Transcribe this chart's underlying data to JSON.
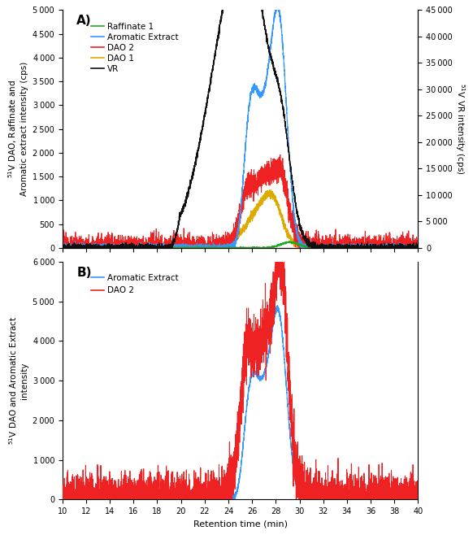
{
  "xlim": [
    10,
    40
  ],
  "xticks": [
    10,
    12,
    14,
    16,
    18,
    20,
    22,
    24,
    26,
    28,
    30,
    32,
    34,
    36,
    38,
    40
  ],
  "panel_A": {
    "ylim_left": [
      0,
      5000
    ],
    "ylim_right": [
      0,
      45000
    ],
    "yticks_left": [
      0,
      500,
      1000,
      1500,
      2000,
      2500,
      3000,
      3500,
      4000,
      4500,
      5000
    ],
    "yticks_right": [
      0,
      5000,
      10000,
      15000,
      20000,
      25000,
      30000,
      35000,
      40000,
      45000
    ],
    "ylabel_left": "$^{51}$V DAO, Raffinate and\nAromatic extract intensity (cps)",
    "ylabel_right": "$^{51}$V VR intensity (cps)",
    "label_A": "A)",
    "legend_colors": [
      "#22aa22",
      "#3399ff",
      "#ee2222",
      "#ddaa00",
      "#111111"
    ],
    "legend_labels": [
      "Raffinate 1",
      "Aromatic Extract",
      "DAO 2",
      "DAO 1",
      "VR"
    ]
  },
  "panel_B": {
    "ylim": [
      0,
      6000
    ],
    "yticks": [
      0,
      1000,
      2000,
      3000,
      4000,
      5000,
      6000
    ],
    "ylabel": "$^{51}$V DAO and Aromatic Extract\nintensity",
    "xlabel": "Retention time (min)",
    "label_B": "B)",
    "legend_colors": [
      "#3399ff",
      "#ee2222"
    ],
    "legend_labels": [
      "Aromatic Extract",
      "DAO 2"
    ]
  }
}
